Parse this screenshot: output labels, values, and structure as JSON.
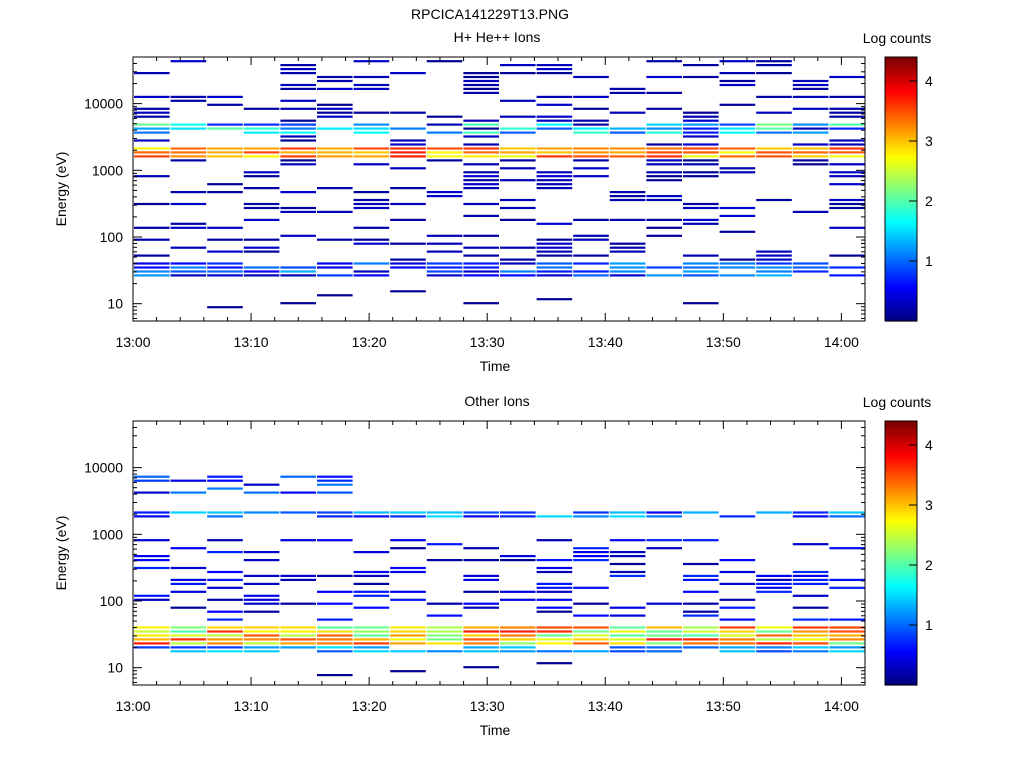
{
  "figure": {
    "title": "RPCICA141229T13.PNG"
  },
  "chart_data": [
    {
      "type": "heatmap",
      "title": "H+ He++ Ions",
      "xlabel": "Time",
      "ylabel": "Energy (eV)",
      "x_ticks": [
        "13:00",
        "13:10",
        "13:20",
        "13:30",
        "13:40",
        "13:50",
        "14:00"
      ],
      "y_ticks": [
        "10",
        "100",
        "1000",
        "10000"
      ],
      "y_scale": "log",
      "x_range": [
        "13:00",
        "14:02"
      ],
      "y_range": [
        5.5,
        50000
      ],
      "colorbar": {
        "label": "Log counts",
        "range": [
          0,
          4.4
        ],
        "ticks": [
          "1",
          "2",
          "3",
          "4"
        ]
      }
    },
    {
      "type": "heatmap",
      "title": "Other Ions",
      "xlabel": "Time",
      "ylabel": "Energy (eV)",
      "x_ticks": [
        "13:00",
        "13:10",
        "13:20",
        "13:30",
        "13:40",
        "13:50",
        "14:00"
      ],
      "y_ticks": [
        "10",
        "100",
        "1000",
        "10000"
      ],
      "y_scale": "log",
      "x_range": [
        "13:00",
        "14:02"
      ],
      "y_range": [
        5.5,
        50000
      ],
      "colorbar": {
        "label": "Log counts",
        "range": [
          0,
          4.4
        ],
        "ticks": [
          "1",
          "2",
          "3",
          "4"
        ]
      }
    }
  ]
}
